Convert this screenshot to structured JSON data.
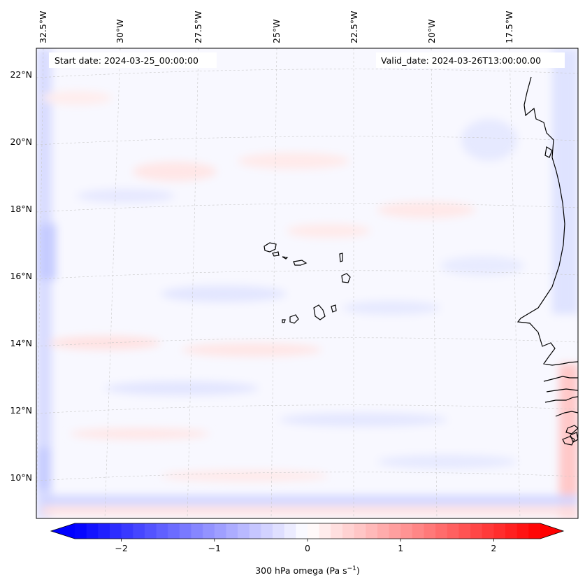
{
  "header": {
    "start_date": "Start date: 2024-03-25_00:00:00",
    "valid_date": "Valid_date: 2024-03-26T13:00:00.00"
  },
  "map": {
    "longitude_labels": [
      "32.5°W",
      "30°W",
      "27.5°W",
      "25°W",
      "22.5°W",
      "20°W",
      "17.5°W"
    ],
    "latitude_labels": [
      "22°N",
      "20°N",
      "18°N",
      "16°N",
      "14°N",
      "12°N",
      "10°N"
    ],
    "gridlines": true,
    "field": "300 hPa omega",
    "features": [
      "cabo-verde-islands",
      "west-africa-coastline"
    ]
  },
  "colorbar": {
    "colormap": "bwr",
    "colors": {
      "min": "#0000ff",
      "mid": "#ffffff",
      "max": "#ff0000"
    },
    "ticks": [
      "−2",
      "−1",
      "0",
      "1",
      "2"
    ],
    "tick_values": [
      -2,
      -1,
      0,
      1,
      2
    ],
    "range": [
      -2.5,
      2.5
    ],
    "extend": "both",
    "label_prefix": "300 hPa omega (Pa s",
    "label_exp": "−1",
    "label_suffix": ")"
  }
}
